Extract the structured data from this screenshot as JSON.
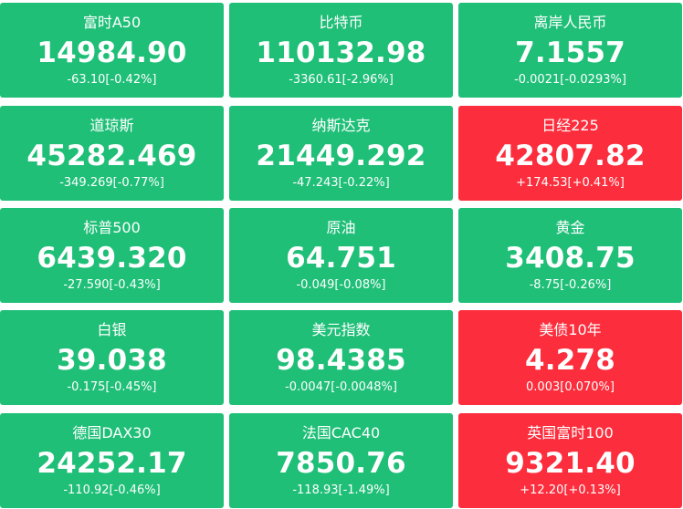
{
  "colors": {
    "down": "#1fbf78",
    "up": "#fc2d3c",
    "text": "#ffffff"
  },
  "quotes": [
    {
      "name": "富时A50",
      "price": "14984.90",
      "change": "-63.10[-0.42%]",
      "trend": "down"
    },
    {
      "name": "比特币",
      "price": "110132.98",
      "change": "-3360.61[-2.96%]",
      "trend": "down"
    },
    {
      "name": "离岸人民币",
      "price": "7.1557",
      "change": "-0.0021[-0.0293%]",
      "trend": "down"
    },
    {
      "name": "道琼斯",
      "price": "45282.469",
      "change": "-349.269[-0.77%]",
      "trend": "down"
    },
    {
      "name": "纳斯达克",
      "price": "21449.292",
      "change": "-47.243[-0.22%]",
      "trend": "down"
    },
    {
      "name": "日经225",
      "price": "42807.82",
      "change": "+174.53[+0.41%]",
      "trend": "up"
    },
    {
      "name": "标普500",
      "price": "6439.320",
      "change": "-27.590[-0.43%]",
      "trend": "down"
    },
    {
      "name": "原油",
      "price": "64.751",
      "change": "-0.049[-0.08%]",
      "trend": "down"
    },
    {
      "name": "黄金",
      "price": "3408.75",
      "change": "-8.75[-0.26%]",
      "trend": "down"
    },
    {
      "name": "白银",
      "price": "39.038",
      "change": "-0.175[-0.45%]",
      "trend": "down"
    },
    {
      "name": "美元指数",
      "price": "98.4385",
      "change": "-0.0047[-0.0048%]",
      "trend": "down"
    },
    {
      "name": "美债10年",
      "price": "4.278",
      "change": "0.003[0.070%]",
      "trend": "up"
    },
    {
      "name": "德国DAX30",
      "price": "24252.17",
      "change": "-110.92[-0.46%]",
      "trend": "down"
    },
    {
      "name": "法国CAC40",
      "price": "7850.76",
      "change": "-118.93[-1.49%]",
      "trend": "down"
    },
    {
      "name": "英国富时100",
      "price": "9321.40",
      "change": "+12.20[+0.13%]",
      "trend": "up"
    }
  ]
}
